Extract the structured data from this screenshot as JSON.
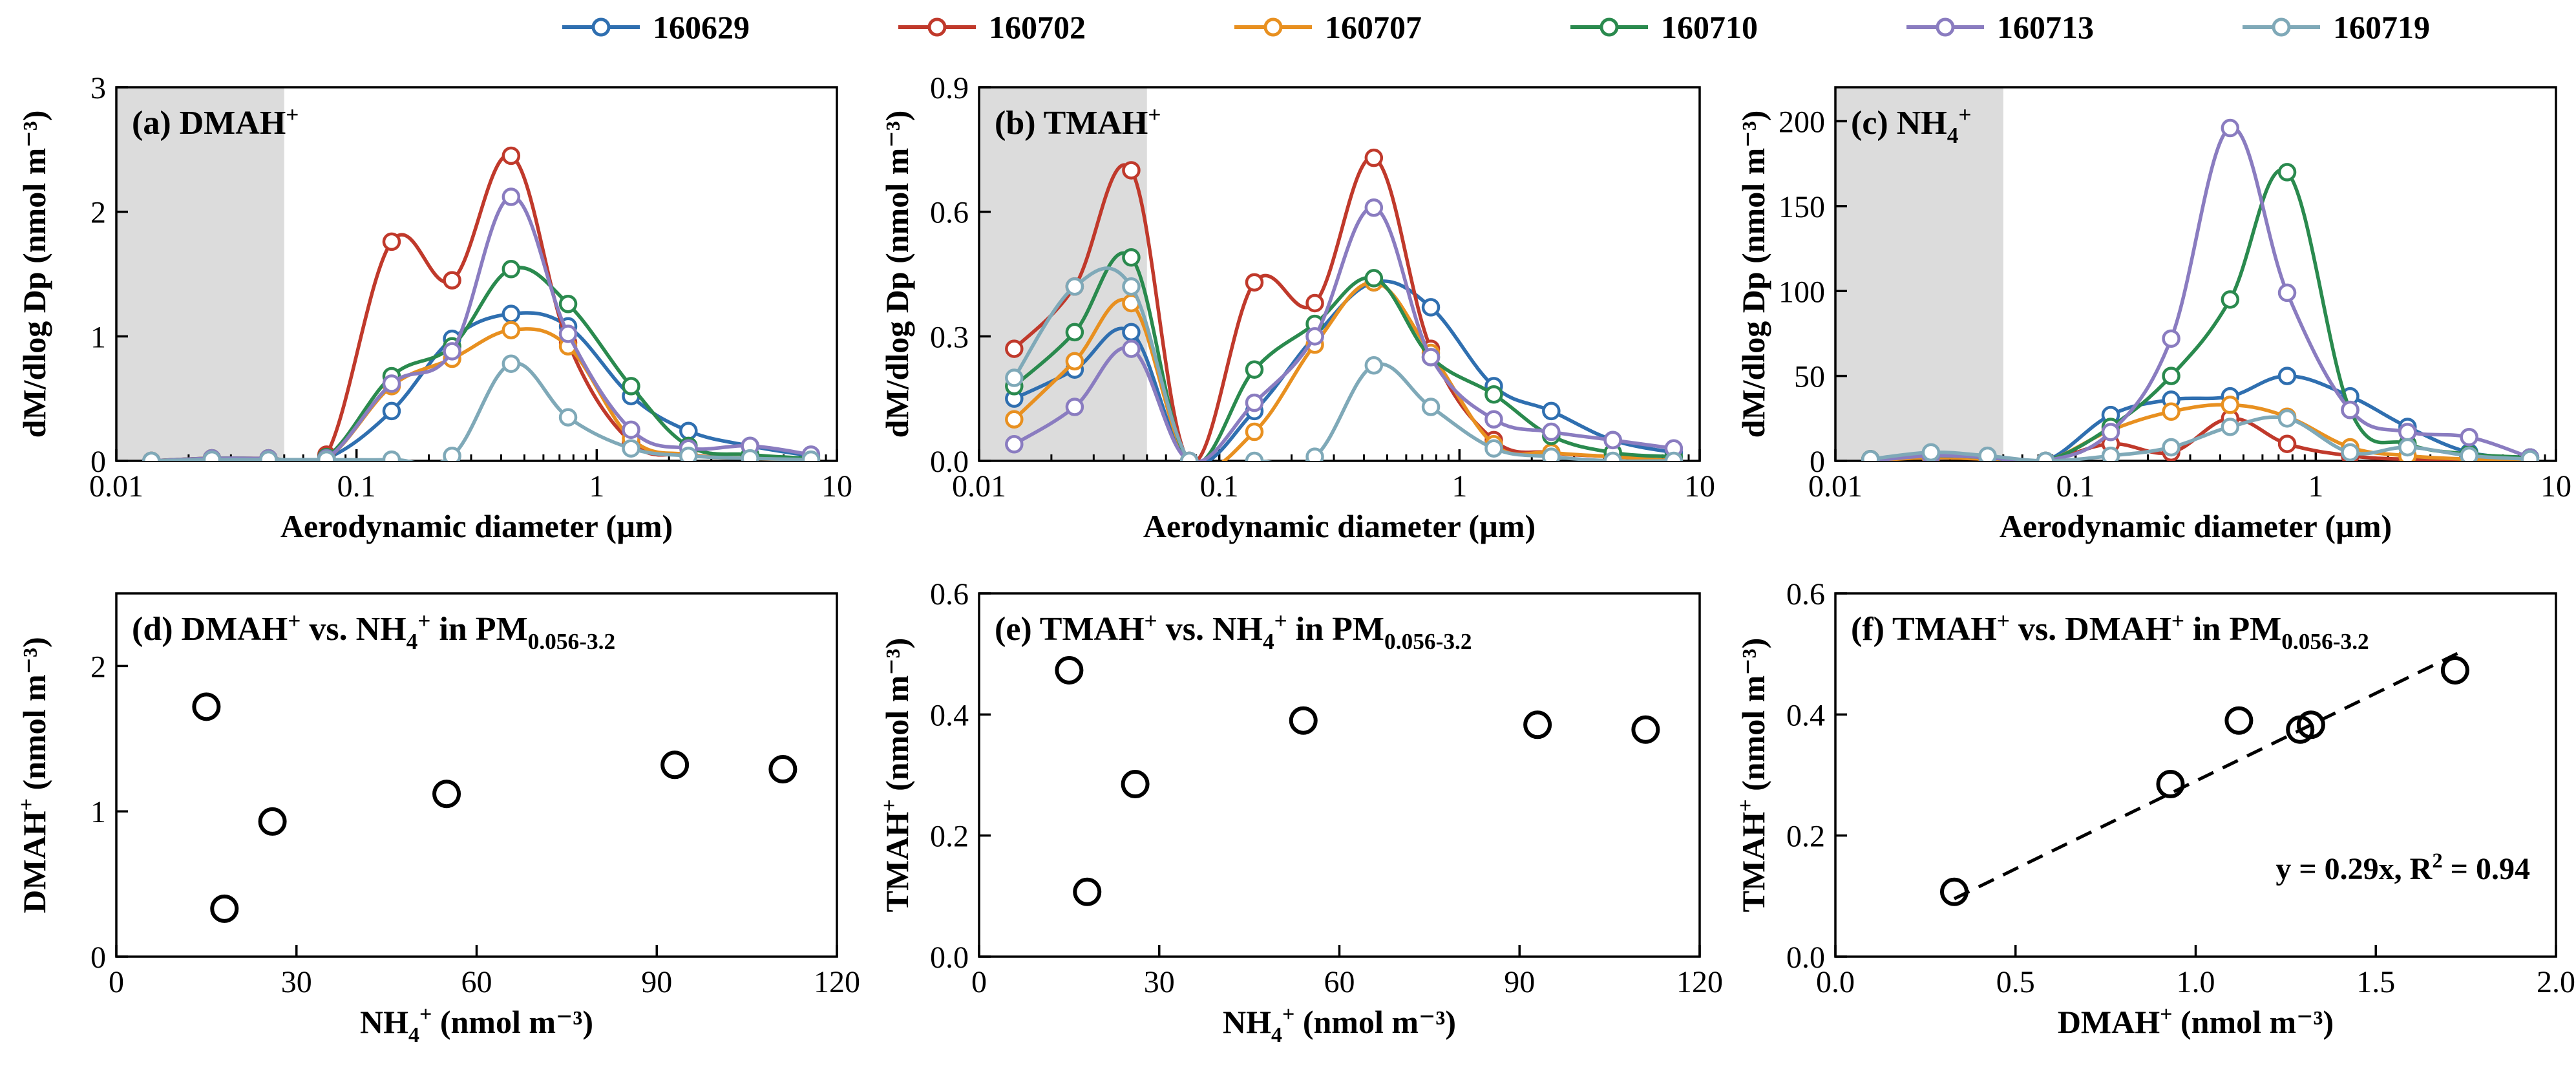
{
  "colors": {
    "160629": "#2f6fb0",
    "160702": "#c0392b",
    "160707": "#e89020",
    "160710": "#2a8a4e",
    "160713": "#8a7cc0",
    "160719": "#7fa9b8",
    "shade": "#dcdcdc"
  },
  "legend": [
    "160629",
    "160702",
    "160707",
    "160710",
    "160713",
    "160719"
  ],
  "chart_data": [
    {
      "id": "a",
      "type": "line",
      "panel_label": "(a) DMAH",
      "panel_label_sup": "+",
      "xlabel": "Aerodynamic diameter (µm)",
      "ylabel": "dM/dlog Dp (nmol m⁻³)",
      "xscale": "log",
      "xlim": [
        0.01,
        10
      ],
      "ylim": [
        0,
        3
      ],
      "yticks": [
        0,
        1,
        2,
        3
      ],
      "ytick_labels": [
        "0",
        "1",
        "2",
        "3"
      ],
      "xticks": [
        0.01,
        0.1,
        1,
        10
      ],
      "xtick_labels": [
        "0.01",
        "0.1",
        "1",
        "10"
      ],
      "shaded_x": [
        0.01,
        0.05
      ],
      "x": [
        0.014,
        0.025,
        0.043,
        0.075,
        0.14,
        0.25,
        0.44,
        0.76,
        1.39,
        2.41,
        4.35,
        7.8
      ],
      "series": [
        {
          "name": "160629",
          "values": [
            0,
            0.02,
            0.01,
            0.02,
            0.4,
            0.98,
            1.18,
            1.08,
            0.52,
            0.24,
            0.12,
            0.04
          ]
        },
        {
          "name": "160702",
          "values": [
            0,
            0.02,
            0.01,
            0.05,
            1.76,
            1.45,
            2.45,
            0.95,
            0.15,
            0.05,
            0.02,
            0.01
          ]
        },
        {
          "name": "160707",
          "values": [
            0,
            0.02,
            0.02,
            0.02,
            0.6,
            0.82,
            1.05,
            0.92,
            0.18,
            0.05,
            0.02,
            0.01
          ]
        },
        {
          "name": "160710",
          "values": [
            0,
            0.02,
            0.02,
            0.03,
            0.68,
            0.92,
            1.54,
            1.26,
            0.6,
            0.12,
            0.05,
            0.02
          ]
        },
        {
          "name": "160713",
          "values": [
            0,
            0.02,
            0.02,
            0.02,
            0.62,
            0.88,
            2.12,
            1.02,
            0.25,
            0.1,
            0.12,
            0.05
          ]
        },
        {
          "name": "160719",
          "values": [
            0,
            0.01,
            0.01,
            0.01,
            0.01,
            0.04,
            0.78,
            0.35,
            0.1,
            0.04,
            0.02,
            0.01
          ]
        }
      ]
    },
    {
      "id": "b",
      "type": "line",
      "panel_label": "(b) TMAH",
      "panel_label_sup": "+",
      "xlabel": "Aerodynamic diameter (µm)",
      "ylabel": "dM/dlog Dp (nmol m⁻³)",
      "xscale": "log",
      "xlim": [
        0.01,
        10
      ],
      "ylim": [
        0,
        0.9
      ],
      "yticks": [
        0,
        0.3,
        0.6,
        0.9
      ],
      "ytick_labels": [
        "0.0",
        "0.3",
        "0.6",
        "0.9"
      ],
      "xticks": [
        0.01,
        0.1,
        1,
        10
      ],
      "xtick_labels": [
        "0.01",
        "0.1",
        "1",
        "10"
      ],
      "shaded_x": [
        0.01,
        0.05
      ],
      "x": [
        0.014,
        0.025,
        0.043,
        0.075,
        0.14,
        0.25,
        0.44,
        0.76,
        1.39,
        2.41,
        4.35,
        7.8
      ],
      "series": [
        {
          "name": "160629",
          "values": [
            0.15,
            0.22,
            0.31,
            0.0,
            0.12,
            0.3,
            0.43,
            0.37,
            0.18,
            0.12,
            0.05,
            0.02
          ]
        },
        {
          "name": "160702",
          "values": [
            0.27,
            0.42,
            0.7,
            0.0,
            0.43,
            0.38,
            0.73,
            0.27,
            0.05,
            0.02,
            0.01,
            0.0
          ]
        },
        {
          "name": "160707",
          "values": [
            0.1,
            0.24,
            0.38,
            0.0,
            0.07,
            0.28,
            0.43,
            0.26,
            0.04,
            0.02,
            0.01,
            0.0
          ]
        },
        {
          "name": "160710",
          "values": [
            0.18,
            0.31,
            0.49,
            0.0,
            0.22,
            0.33,
            0.44,
            0.25,
            0.16,
            0.06,
            0.02,
            0.01
          ]
        },
        {
          "name": "160713",
          "values": [
            0.04,
            0.13,
            0.27,
            0.0,
            0.14,
            0.3,
            0.61,
            0.25,
            0.1,
            0.07,
            0.05,
            0.03
          ]
        },
        {
          "name": "160719",
          "values": [
            0.2,
            0.42,
            0.42,
            0.0,
            0.0,
            0.01,
            0.23,
            0.13,
            0.03,
            0.01,
            0.0,
            0.0
          ]
        }
      ]
    },
    {
      "id": "c",
      "type": "line",
      "panel_label": "(c) NH",
      "panel_label_sub": "4",
      "panel_label_sup": "+",
      "xlabel": "Aerodynamic diameter (µm)",
      "ylabel": "dM/dlog Dp (nmol m⁻³)",
      "xscale": "log",
      "xlim": [
        0.01,
        10
      ],
      "ylim": [
        0,
        220
      ],
      "yticks": [
        0,
        50,
        100,
        150,
        200
      ],
      "ytick_labels": [
        "0",
        "50",
        "100",
        "150",
        "200"
      ],
      "xticks": [
        0.01,
        0.1,
        1,
        10
      ],
      "xtick_labels": [
        "0.01",
        "0.1",
        "1",
        "10"
      ],
      "shaded_x": [
        0.01,
        0.05
      ],
      "x": [
        0.014,
        0.025,
        0.043,
        0.075,
        0.14,
        0.25,
        0.44,
        0.76,
        1.39,
        2.41,
        4.35,
        7.8
      ],
      "series": [
        {
          "name": "160629",
          "values": [
            1,
            3,
            2,
            0,
            27,
            36,
            38,
            50,
            38,
            20,
            5,
            2
          ]
        },
        {
          "name": "160702",
          "values": [
            1,
            2,
            1,
            0,
            10,
            5,
            25,
            10,
            3,
            1,
            1,
            0
          ]
        },
        {
          "name": "160707",
          "values": [
            0,
            2,
            1,
            0,
            18,
            29,
            33,
            26,
            8,
            3,
            1,
            0
          ]
        },
        {
          "name": "160710",
          "values": [
            1,
            3,
            2,
            0,
            20,
            50,
            95,
            170,
            30,
            10,
            4,
            2
          ]
        },
        {
          "name": "160713",
          "values": [
            0,
            3,
            2,
            0,
            17,
            72,
            196,
            99,
            30,
            17,
            14,
            2
          ]
        },
        {
          "name": "160719",
          "values": [
            1,
            5,
            3,
            0,
            3,
            8,
            20,
            25,
            5,
            8,
            3,
            1
          ]
        }
      ]
    },
    {
      "id": "d",
      "type": "scatter",
      "panel_label": "(d) DMAH",
      "panel_label_sup": "+",
      "panel_label_rest": " vs. NH",
      "panel_label_sub2": "4",
      "panel_label_sup2": "+",
      "panel_label_tail": " in PM",
      "panel_label_sub3": "0.056-3.2",
      "xlabel": "NH",
      "xlabel_sub": "4",
      "xlabel_sup": "+",
      "xlabel_tail": " (nmol m⁻³)",
      "ylabel": "DMAH",
      "ylabel_sup": "+",
      "ylabel_tail": " (nmol m⁻³)",
      "xlim": [
        0,
        120
      ],
      "ylim": [
        0,
        2.5
      ],
      "xticks": [
        0,
        30,
        60,
        90,
        120
      ],
      "xtick_labels": [
        "0",
        "30",
        "60",
        "90",
        "120"
      ],
      "yticks": [
        0,
        1,
        2
      ],
      "ytick_labels": [
        "0",
        "1",
        "2"
      ],
      "x": [
        15,
        18,
        26,
        55,
        93,
        111
      ],
      "y": [
        1.72,
        0.33,
        0.93,
        1.12,
        1.32,
        1.29
      ]
    },
    {
      "id": "e",
      "type": "scatter",
      "panel_label": "(e) TMAH",
      "panel_label_sup": "+",
      "panel_label_rest": " vs. NH",
      "panel_label_sub2": "4",
      "panel_label_sup2": "+",
      "panel_label_tail": " in PM",
      "panel_label_sub3": "0.056-3.2",
      "xlabel": "NH",
      "xlabel_sub": "4",
      "xlabel_sup": "+",
      "xlabel_tail": " (nmol m⁻³)",
      "ylabel": "TMAH",
      "ylabel_sup": "+",
      "ylabel_tail": " (nmol m⁻³)",
      "xlim": [
        0,
        120
      ],
      "ylim": [
        0,
        0.6
      ],
      "xticks": [
        0,
        30,
        60,
        90,
        120
      ],
      "xtick_labels": [
        "0",
        "30",
        "60",
        "90",
        "120"
      ],
      "yticks": [
        0,
        0.2,
        0.4,
        0.6
      ],
      "ytick_labels": [
        "0.0",
        "0.2",
        "0.4",
        "0.6"
      ],
      "x": [
        15,
        18,
        26,
        54,
        93,
        111
      ],
      "y": [
        0.473,
        0.107,
        0.285,
        0.39,
        0.383,
        0.375
      ]
    },
    {
      "id": "f",
      "type": "scatter",
      "panel_label": "(f) TMAH",
      "panel_label_sup": "+",
      "panel_label_rest": " vs. DMAH",
      "panel_label_sup2": "+",
      "panel_label_tail": " in PM",
      "panel_label_sub3": "0.056-3.2",
      "xlabel": "DMAH",
      "xlabel_sup": "+",
      "xlabel_tail": " (nmol m⁻³)",
      "ylabel": "TMAH",
      "ylabel_sup": "+",
      "ylabel_tail": " (nmol m⁻³)",
      "xlim": [
        0,
        2.0
      ],
      "ylim": [
        0,
        0.6
      ],
      "xticks": [
        0,
        0.5,
        1.0,
        1.5,
        2.0
      ],
      "xtick_labels": [
        "0.0",
        "0.5",
        "1.0",
        "1.5",
        "2.0"
      ],
      "yticks": [
        0,
        0.2,
        0.4,
        0.6
      ],
      "ytick_labels": [
        "0.0",
        "0.2",
        "0.4",
        "0.6"
      ],
      "x": [
        0.33,
        0.93,
        1.12,
        1.29,
        1.32,
        1.72
      ],
      "y": [
        0.107,
        0.285,
        0.39,
        0.375,
        0.383,
        0.473
      ],
      "fit": {
        "slope": 0.29,
        "x_range": [
          0.33,
          1.75
        ]
      },
      "fit_label": "y = 0.29x, R",
      "fit_label_sup": "2",
      "fit_label_tail": " = 0.94"
    }
  ]
}
